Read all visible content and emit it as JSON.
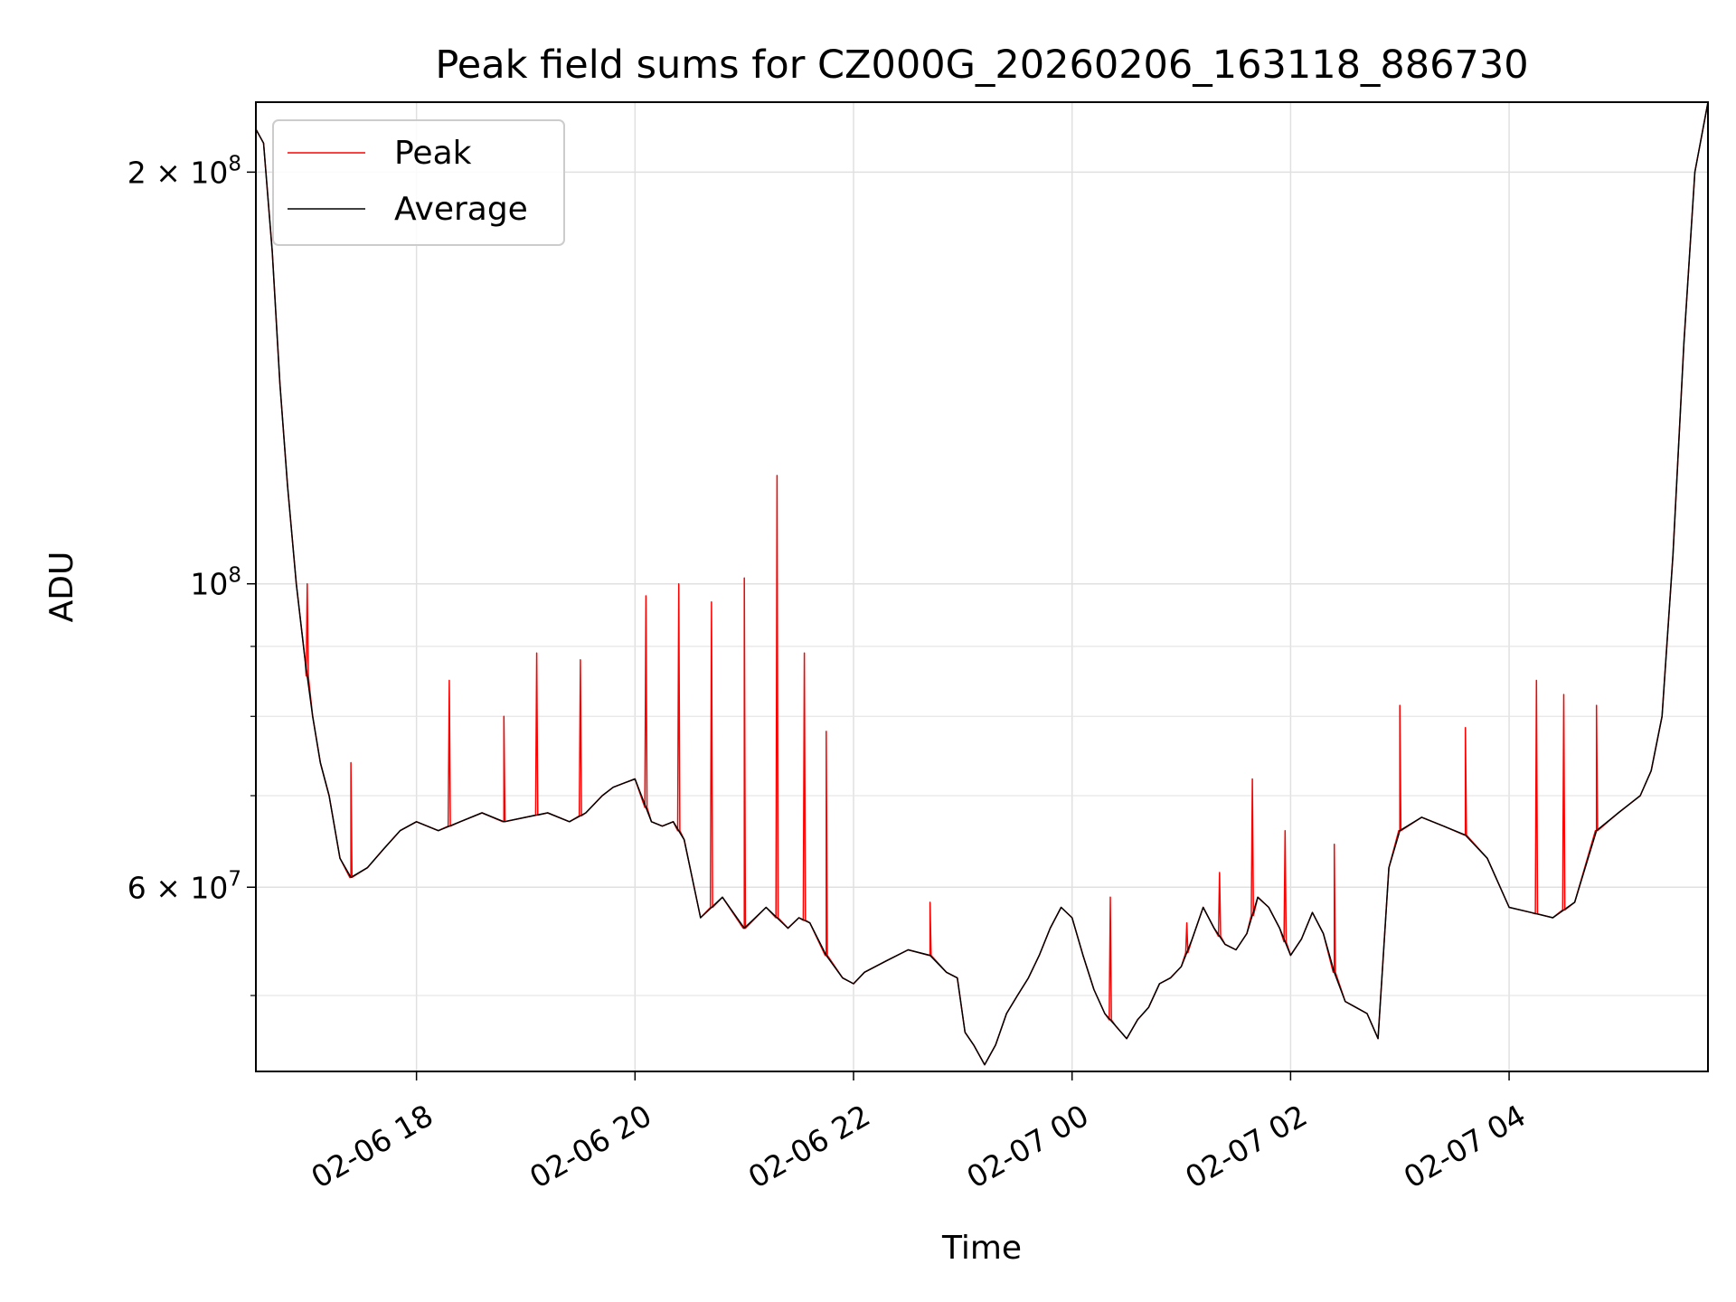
{
  "chart_data": {
    "type": "line",
    "title": "Peak field sums for CZ000G_20260206_163118_886730",
    "xlabel": "Time",
    "ylabel": "ADU",
    "yscale": "log",
    "ylim": [
      44000000,
      225000000
    ],
    "xlim_hours": [
      16.53,
      29.82
    ],
    "grid": true,
    "legend": {
      "position": "top-left",
      "entries": [
        "Peak",
        "Average"
      ]
    },
    "x_ticks": [
      {
        "hour": 18,
        "label": "02-06 18"
      },
      {
        "hour": 20,
        "label": "02-06 20"
      },
      {
        "hour": 22,
        "label": "02-06 22"
      },
      {
        "hour": 24,
        "label": "02-07 00"
      },
      {
        "hour": 26,
        "label": "02-07 02"
      },
      {
        "hour": 28,
        "label": "02-07 04"
      }
    ],
    "y_major_ticks": [
      {
        "value": 60000000,
        "mantissa": "6",
        "exp": "7"
      },
      {
        "value": 100000000,
        "mantissa": "",
        "exp": "8"
      },
      {
        "value": 200000000,
        "mantissa": "2",
        "exp": "8"
      }
    ],
    "y_minor_ticks": [
      50000000,
      70000000,
      80000000,
      90000000
    ],
    "series": [
      {
        "name": "Average",
        "color": "#000000",
        "hours": [
          16.53,
          16.6,
          16.68,
          16.75,
          16.82,
          16.9,
          16.98,
          17.05,
          17.12,
          17.2,
          17.3,
          17.4,
          17.55,
          17.7,
          17.85,
          18.0,
          18.2,
          18.4,
          18.6,
          18.8,
          19.0,
          19.2,
          19.4,
          19.55,
          19.7,
          19.8,
          19.9,
          20.0,
          20.15,
          20.25,
          20.35,
          20.45,
          20.6,
          20.8,
          21.0,
          21.2,
          21.4,
          21.5,
          21.6,
          21.75,
          21.9,
          22.0,
          22.1,
          22.3,
          22.5,
          22.7,
          22.85,
          22.95,
          23.02,
          23.1,
          23.2,
          23.3,
          23.4,
          23.5,
          23.6,
          23.7,
          23.8,
          23.9,
          24.0,
          24.1,
          24.2,
          24.3,
          24.4,
          24.5,
          24.6,
          24.7,
          24.8,
          24.9,
          25.0,
          25.1,
          25.2,
          25.3,
          25.4,
          25.5,
          25.6,
          25.7,
          25.8,
          25.9,
          26.0,
          26.1,
          26.2,
          26.3,
          26.4,
          26.5,
          26.6,
          26.7,
          26.8,
          26.9,
          27.0,
          27.2,
          27.4,
          27.6,
          27.8,
          28.0,
          28.2,
          28.4,
          28.6,
          28.8,
          29.0,
          29.2,
          29.3,
          29.4,
          29.5,
          29.6,
          29.7,
          29.82
        ],
        "values": [
          215000000,
          210000000,
          175000000,
          140000000,
          118000000,
          100000000,
          88000000,
          80000000,
          74000000,
          70000000,
          63000000,
          61000000,
          62000000,
          64000000,
          66000000,
          67000000,
          66000000,
          67000000,
          68000000,
          67000000,
          67500000,
          68000000,
          67000000,
          68000000,
          70000000,
          71000000,
          71500000,
          72000000,
          67000000,
          66500000,
          67000000,
          65000000,
          57000000,
          59000000,
          56000000,
          58000000,
          56000000,
          57000000,
          56500000,
          53500000,
          51500000,
          51000000,
          52000000,
          53000000,
          54000000,
          53500000,
          52000000,
          51500000,
          47000000,
          46000000,
          44500000,
          46000000,
          48500000,
          50000000,
          51500000,
          53500000,
          56000000,
          58000000,
          57000000,
          53500000,
          50500000,
          48500000,
          47500000,
          46500000,
          48000000,
          49000000,
          51000000,
          51500000,
          52500000,
          55000000,
          58000000,
          56000000,
          54500000,
          54000000,
          55500000,
          59000000,
          58000000,
          56000000,
          53500000,
          55000000,
          57500000,
          55500000,
          52000000,
          49500000,
          49000000,
          48500000,
          46500000,
          62000000,
          66000000,
          67500000,
          66500000,
          65500000,
          63000000,
          58000000,
          57500000,
          57000000,
          58500000,
          66000000,
          68000000,
          70000000,
          73000000,
          80000000,
          105000000,
          150000000,
          200000000,
          225000000
        ]
      },
      {
        "name": "Peak",
        "color": "#ff0000",
        "spikes": [
          {
            "hour": 17.0,
            "value": 100000000
          },
          {
            "hour": 17.4,
            "value": 74000000
          },
          {
            "hour": 18.3,
            "value": 85000000
          },
          {
            "hour": 18.8,
            "value": 80000000
          },
          {
            "hour": 19.1,
            "value": 89000000
          },
          {
            "hour": 19.5,
            "value": 88000000
          },
          {
            "hour": 20.1,
            "value": 98000000
          },
          {
            "hour": 20.4,
            "value": 100000000
          },
          {
            "hour": 20.7,
            "value": 97000000
          },
          {
            "hour": 21.0,
            "value": 101000000
          },
          {
            "hour": 21.3,
            "value": 120000000
          },
          {
            "hour": 21.55,
            "value": 89000000
          },
          {
            "hour": 21.75,
            "value": 78000000
          },
          {
            "hour": 22.7,
            "value": 58500000
          },
          {
            "hour": 24.35,
            "value": 59000000
          },
          {
            "hour": 25.05,
            "value": 56500000
          },
          {
            "hour": 25.35,
            "value": 61500000
          },
          {
            "hour": 25.65,
            "value": 72000000
          },
          {
            "hour": 25.95,
            "value": 66000000
          },
          {
            "hour": 26.4,
            "value": 64500000
          },
          {
            "hour": 27.0,
            "value": 81500000
          },
          {
            "hour": 27.6,
            "value": 78500000
          },
          {
            "hour": 28.25,
            "value": 85000000
          },
          {
            "hour": 28.5,
            "value": 83000000
          },
          {
            "hour": 28.8,
            "value": 81500000
          }
        ]
      }
    ]
  }
}
